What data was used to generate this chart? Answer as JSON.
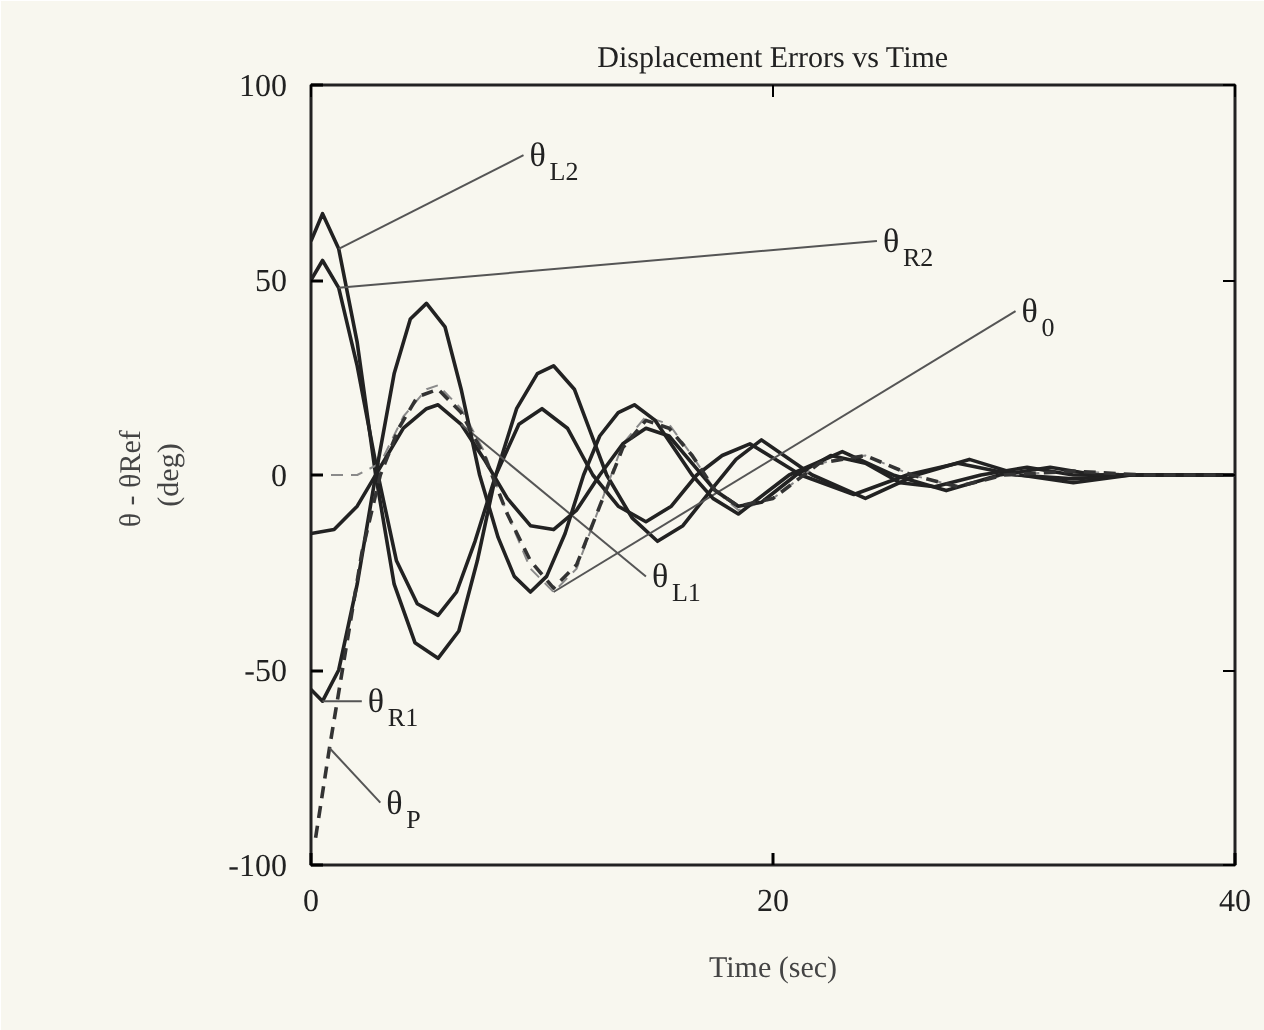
{
  "chart_data": {
    "type": "line",
    "title": "Displacement Errors vs Time",
    "xlabel": "Time (sec)",
    "ylabel": "θ -  θRef\n(deg)",
    "xlim": [
      0,
      40
    ],
    "ylim": [
      -100,
      100
    ],
    "xticks": [
      0,
      20,
      40
    ],
    "yticks": [
      -100,
      -50,
      0,
      50,
      100
    ],
    "grid": false,
    "marker": "none",
    "series": [
      {
        "name": "θ$_{L2}$",
        "color": "#222222",
        "line_style": "solid",
        "x": [
          0,
          0.5,
          1.2,
          2,
          2.8,
          3.6,
          4.5,
          5.5,
          6.4,
          7.2,
          8,
          8.9,
          9.8,
          10.5,
          11.4,
          12.1,
          12.8,
          13.9,
          15,
          16.1,
          17.3,
          18.4,
          19.5,
          21.7,
          24,
          26.2,
          28.5,
          30.7,
          33,
          35.5,
          38,
          40
        ],
        "values": [
          60,
          67,
          58,
          34,
          0,
          -28,
          -43,
          -47,
          -40,
          -22,
          0,
          17,
          26,
          28,
          22,
          11,
          0,
          -11,
          -17,
          -13,
          -4,
          4,
          9,
          0,
          -6,
          0,
          4,
          0,
          -2,
          0,
          0,
          0
        ]
      },
      {
        "name": "θ$_{R2}$",
        "color": "#222222",
        "line_style": "solid",
        "x": [
          0,
          0.5,
          1.2,
          2,
          2.9,
          3.7,
          4.6,
          5.5,
          6.3,
          7.1,
          8,
          9,
          10,
          11.1,
          12.2,
          13.3,
          14.5,
          15.6,
          16.7,
          17.8,
          19,
          21.2,
          23.5,
          25.8,
          28,
          30.5,
          33,
          35.5,
          38,
          40
        ],
        "values": [
          50,
          55,
          48,
          28,
          0,
          -22,
          -33,
          -36,
          -30,
          -17,
          0,
          13,
          17,
          12,
          0,
          -8,
          -12,
          -8,
          0,
          5,
          8,
          0,
          -5,
          0,
          3,
          0,
          -1,
          0,
          0,
          0
        ]
      },
      {
        "name": "θ$_{0}$",
        "color": "#8a8a8a",
        "line_style": "dashed",
        "x": [
          0,
          2,
          3,
          4,
          5,
          5.5,
          6.5,
          7.5,
          8.5,
          9.5,
          10.5,
          11.5,
          12.5,
          13.5,
          14.5,
          15.5,
          16.5,
          17.5,
          18.5,
          20,
          22,
          24,
          26,
          28,
          30,
          33,
          36,
          40
        ],
        "values": [
          0,
          0,
          3,
          15,
          22,
          23,
          17,
          6,
          -10,
          -24,
          -30,
          -24,
          -8,
          8,
          15,
          13,
          5,
          -4,
          -9,
          -6,
          3,
          5,
          0,
          -3,
          0,
          1,
          0,
          0
        ]
      },
      {
        "name": "θ$_{L1}$",
        "color": "#222222",
        "line_style": "solid",
        "x": [
          0,
          1,
          2,
          3,
          4,
          5,
          5.5,
          6.5,
          7.5,
          8.5,
          9.5,
          10.5,
          11.5,
          12.5,
          13.5,
          14.5,
          15.5,
          16.5,
          17.5,
          18.5,
          19.5,
          21,
          22.5,
          24,
          25.5,
          27,
          29,
          31,
          33,
          36,
          40
        ],
        "values": [
          -15,
          -14,
          -8,
          2,
          12,
          17,
          18,
          13,
          4,
          -6,
          -13,
          -14,
          -9,
          0,
          8,
          12,
          10,
          3,
          -4,
          -8,
          -7,
          0,
          5,
          3,
          -2,
          -3,
          0,
          2,
          0,
          0,
          0
        ]
      },
      {
        "name": "θ$_{R1}$",
        "color": "#222222",
        "line_style": "solid",
        "x": [
          0,
          0.5,
          1.2,
          2,
          2.8,
          3.6,
          4.3,
          5,
          5.8,
          6.5,
          7.3,
          8.1,
          8.8,
          9.5,
          10.2,
          11,
          11.8,
          12.5,
          13.3,
          14,
          14.9,
          15.7,
          16.5,
          17.4,
          18.5,
          20.7,
          23,
          25.2,
          27.5,
          29.8,
          32,
          34,
          36,
          40
        ],
        "values": [
          -55,
          -58,
          -50,
          -28,
          0,
          26,
          40,
          44,
          38,
          22,
          0,
          -16,
          -26,
          -30,
          -26,
          -15,
          0,
          10,
          16,
          18,
          14,
          7,
          0,
          -6,
          -10,
          0,
          6,
          0,
          -4,
          0,
          2,
          0,
          0,
          0
        ]
      },
      {
        "name": "θ$_{P}$",
        "color": "#333333",
        "line_style": "dashed",
        "x": [
          0.2,
          0.8,
          1.5,
          2.2,
          3,
          3.8,
          4.6,
          5.5,
          6.5,
          7.5,
          8.5,
          9.5,
          10.5,
          11.5,
          12.5,
          13.5,
          14.5,
          15.5,
          16.5,
          17.5,
          18.5,
          20,
          22,
          24,
          26,
          28,
          30,
          33,
          36,
          40
        ],
        "values": [
          -93,
          -70,
          -45,
          -20,
          0,
          12,
          20,
          22,
          16,
          5,
          -10,
          -22,
          -29,
          -23,
          -8,
          7,
          14,
          12,
          5,
          -4,
          -8,
          -6,
          3,
          5,
          0,
          -3,
          0,
          1,
          0,
          0
        ]
      }
    ]
  }
}
